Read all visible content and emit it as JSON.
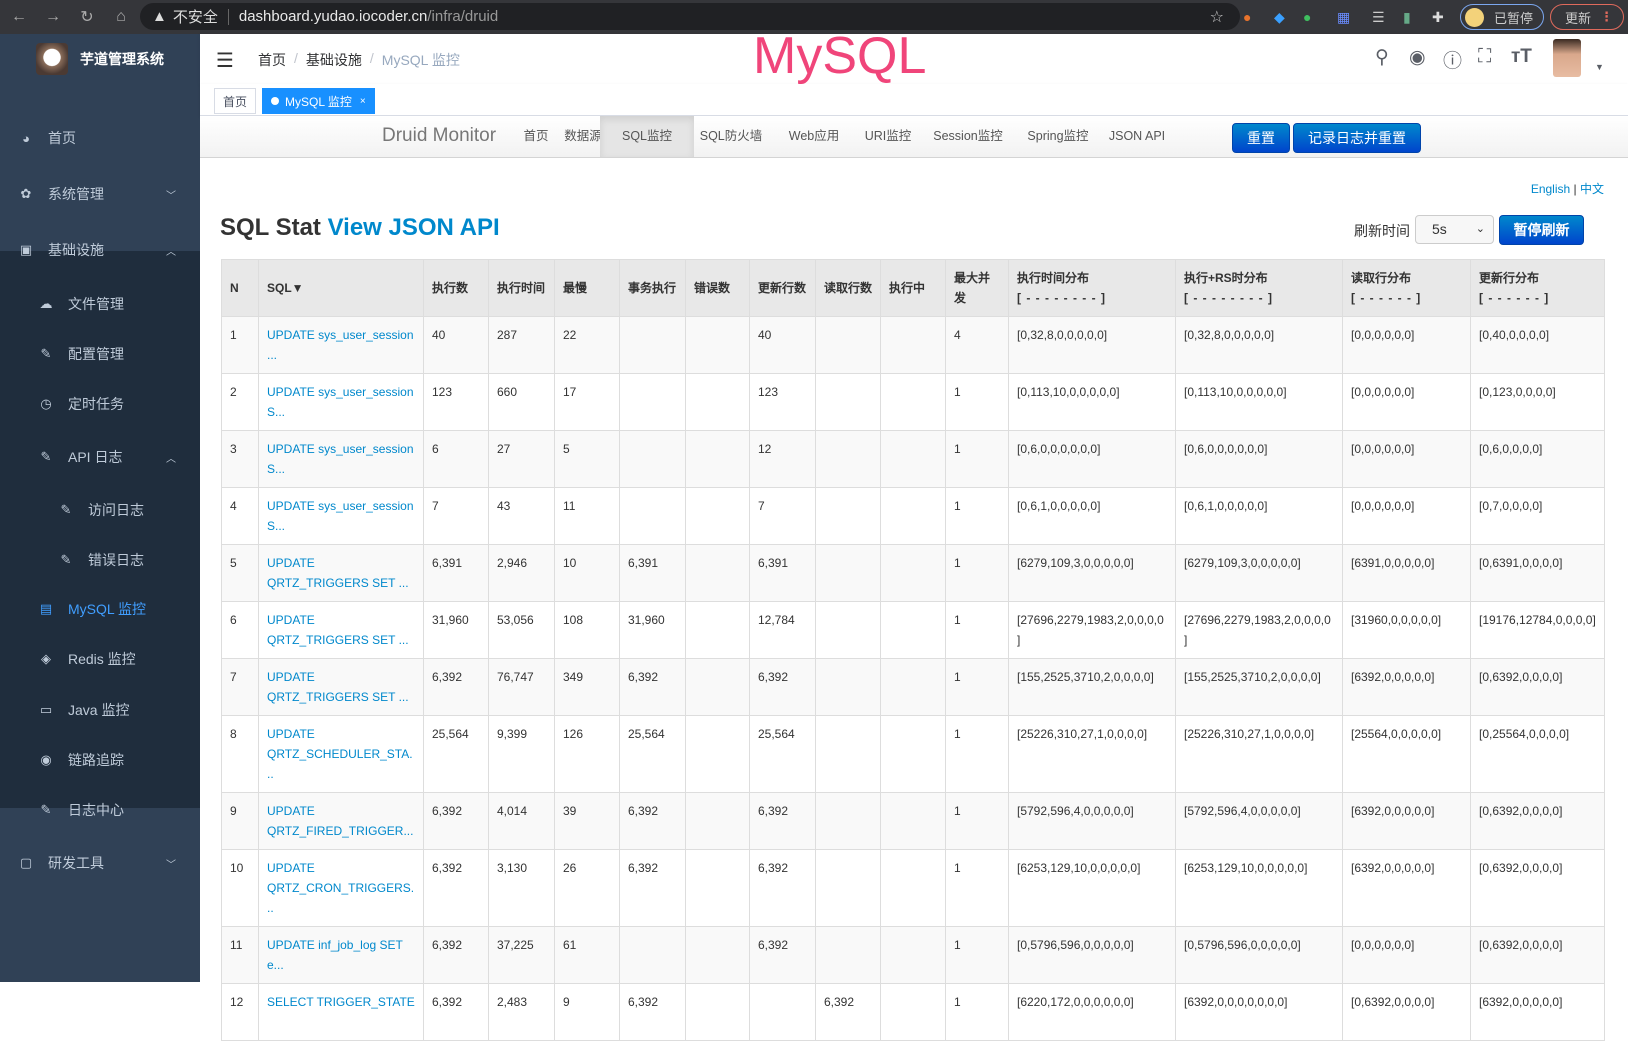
{
  "browser": {
    "security": "不安全",
    "url_host": "dashboard.yudao.iocoder.cn",
    "url_path": "/infra/druid",
    "paused_label": "已暂停",
    "update_label": "更新"
  },
  "sidebar": {
    "app_title": "芋道管理系统",
    "items": [
      {
        "label": "首页",
        "icon": "dashboard-icon"
      },
      {
        "label": "系统管理",
        "icon": "gear-icon"
      },
      {
        "label": "基础设施",
        "icon": "monitor-icon"
      },
      {
        "label": "文件管理",
        "icon": "upload-icon"
      },
      {
        "label": "配置管理",
        "icon": "edit-icon"
      },
      {
        "label": "定时任务",
        "icon": "job-icon"
      },
      {
        "label": "API 日志",
        "icon": "log-icon"
      },
      {
        "label": "访问日志",
        "icon": "log-icon"
      },
      {
        "label": "错误日志",
        "icon": "log-icon"
      },
      {
        "label": "MySQL 监控",
        "icon": "database-icon"
      },
      {
        "label": "Redis 监控",
        "icon": "redis-icon"
      },
      {
        "label": "Java 监控",
        "icon": "server-icon"
      },
      {
        "label": "链路追踪",
        "icon": "eye-icon"
      },
      {
        "label": "日志中心",
        "icon": "log-icon"
      },
      {
        "label": "研发工具",
        "icon": "toolbox-icon"
      }
    ]
  },
  "navbar": {
    "breadcrumb": [
      "首页",
      "基础设施",
      "MySQL 监控"
    ],
    "overlay_title": "MySQL"
  },
  "tags": [
    "首页",
    "MySQL 监控"
  ],
  "druid": {
    "brand": "Druid Monitor",
    "nav": [
      "首页",
      "数据源",
      "SQL监控",
      "SQL防火墙",
      "Web应用",
      "URI监控",
      "Session监控",
      "Spring监控",
      "JSON API"
    ],
    "active_nav": "SQL监控",
    "reset_button": "重置",
    "log_reset_button": "记录日志并重置",
    "lang_en": "English",
    "lang_sep": "|",
    "lang_zh": "中文",
    "title": "SQL Stat",
    "title_link": "View JSON API",
    "refresh_label": "刷新时间",
    "refresh_value": "5s",
    "pause_button": "暂停刷新"
  },
  "table": {
    "headers": [
      "N",
      "SQL▼",
      "执行数",
      "执行时间",
      "最慢",
      "事务执行",
      "错误数",
      "更新行数",
      "读取行数",
      "执行中",
      "最大并发",
      "执行时间分布",
      "执行+RS时分布",
      "读取行分布",
      "更新行分布"
    ],
    "header_subs": {
      "11": "[ - - - - - - - - ]",
      "12": "[ - - - - - - - - ]",
      "13": "[ - - - - - - ]",
      "14": "[ - - - - - - ]"
    },
    "rows": [
      [
        "1",
        "UPDATE sys_user_session ...",
        "40",
        "287",
        "22",
        "",
        "",
        "40",
        "",
        "",
        "4",
        "[0,32,8,0,0,0,0,0]",
        "[0,32,8,0,0,0,0,0]",
        "[0,0,0,0,0,0]",
        "[0,40,0,0,0,0]"
      ],
      [
        "2",
        "UPDATE sys_user_session S...",
        "123",
        "660",
        "17",
        "",
        "",
        "123",
        "",
        "",
        "1",
        "[0,113,10,0,0,0,0,0]",
        "[0,113,10,0,0,0,0,0]",
        "[0,0,0,0,0,0]",
        "[0,123,0,0,0,0]"
      ],
      [
        "3",
        "UPDATE sys_user_session S...",
        "6",
        "27",
        "5",
        "",
        "",
        "12",
        "",
        "",
        "1",
        "[0,6,0,0,0,0,0,0]",
        "[0,6,0,0,0,0,0,0]",
        "[0,0,0,0,0,0]",
        "[0,6,0,0,0,0]"
      ],
      [
        "4",
        "UPDATE sys_user_session S...",
        "7",
        "43",
        "11",
        "",
        "",
        "7",
        "",
        "",
        "1",
        "[0,6,1,0,0,0,0,0]",
        "[0,6,1,0,0,0,0,0]",
        "[0,0,0,0,0,0]",
        "[0,7,0,0,0,0]"
      ],
      [
        "5",
        "UPDATE QRTZ_TRIGGERS SET ...",
        "6,391",
        "2,946",
        "10",
        "6,391",
        "",
        "6,391",
        "",
        "",
        "1",
        "[6279,109,3,0,0,0,0,0]",
        "[6279,109,3,0,0,0,0,0]",
        "[6391,0,0,0,0,0]",
        "[0,6391,0,0,0,0]"
      ],
      [
        "6",
        "UPDATE QRTZ_TRIGGERS SET ...",
        "31,960",
        "53,056",
        "108",
        "31,960",
        "",
        "12,784",
        "",
        "",
        "1",
        "[27696,2279,1983,2,0,0,0,0]",
        "[27696,2279,1983,2,0,0,0,0]",
        "[31960,0,0,0,0,0]",
        "[19176,12784,0,0,0,0]"
      ],
      [
        "7",
        "UPDATE QRTZ_TRIGGERS SET ...",
        "6,392",
        "76,747",
        "349",
        "6,392",
        "",
        "6,392",
        "",
        "",
        "1",
        "[155,2525,3710,2,0,0,0,0]",
        "[155,2525,3710,2,0,0,0,0]",
        "[6392,0,0,0,0,0]",
        "[0,6392,0,0,0,0]"
      ],
      [
        "8",
        "UPDATE QRTZ_SCHEDULER_STA...",
        "25,564",
        "9,399",
        "126",
        "25,564",
        "",
        "25,564",
        "",
        "",
        "1",
        "[25226,310,27,1,0,0,0,0]",
        "[25226,310,27,1,0,0,0,0]",
        "[25564,0,0,0,0,0]",
        "[0,25564,0,0,0,0]"
      ],
      [
        "9",
        "UPDATE QRTZ_FIRED_TRIGGER...",
        "6,392",
        "4,014",
        "39",
        "6,392",
        "",
        "6,392",
        "",
        "",
        "1",
        "[5792,596,4,0,0,0,0,0]",
        "[5792,596,4,0,0,0,0,0]",
        "[6392,0,0,0,0,0]",
        "[0,6392,0,0,0,0]"
      ],
      [
        "10",
        "UPDATE QRTZ_CRON_TRIGGERS...",
        "6,392",
        "3,130",
        "26",
        "6,392",
        "",
        "6,392",
        "",
        "",
        "1",
        "[6253,129,10,0,0,0,0,0]",
        "[6253,129,10,0,0,0,0,0]",
        "[6392,0,0,0,0,0]",
        "[0,6392,0,0,0,0]"
      ],
      [
        "11",
        "UPDATE inf_job_log SET e...",
        "6,392",
        "37,225",
        "61",
        "",
        "",
        "6,392",
        "",
        "",
        "1",
        "[0,5796,596,0,0,0,0,0]",
        "[0,5796,596,0,0,0,0,0]",
        "[0,0,0,0,0,0]",
        "[0,6392,0,0,0,0]"
      ],
      [
        "12",
        "SELECT TRIGGER_STATE",
        "6,392",
        "2,483",
        "9",
        "6,392",
        "",
        "",
        "6,392",
        "",
        "1",
        "[6220,172,0,0,0,0,0,0]",
        "[6392,0,0,0,0,0,0,0]",
        "[0,6392,0,0,0,0]",
        "[6392,0,0,0,0,0]"
      ]
    ]
  },
  "colors": {
    "sidebar_bg": "#304156",
    "active_menu": "#409eff",
    "link": "#0088cc",
    "overlay_title": "#f0457a"
  }
}
